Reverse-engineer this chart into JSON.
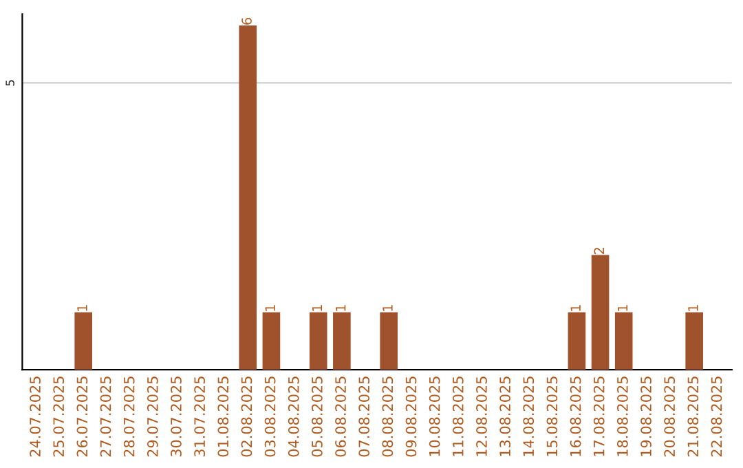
{
  "chart_data": {
    "type": "bar",
    "categories": [
      "24.07.2025",
      "25.07.2025",
      "26.07.2025",
      "27.07.2025",
      "28.07.2025",
      "29.07.2025",
      "30.07.2025",
      "31.07.2025",
      "01.08.2025",
      "02.08.2025",
      "03.08.2025",
      "04.08.2025",
      "05.08.2025",
      "06.08.2025",
      "07.08.2025",
      "08.08.2025",
      "09.08.2025",
      "10.08.2025",
      "11.08.2025",
      "12.08.2025",
      "13.08.2025",
      "14.08.2025",
      "15.08.2025",
      "16.08.2025",
      "17.08.2025",
      "18.08.2025",
      "19.08.2025",
      "20.08.2025",
      "21.08.2025",
      "22.08.2025"
    ],
    "values": [
      0,
      0,
      1,
      0,
      0,
      0,
      0,
      0,
      0,
      6,
      1,
      0,
      1,
      1,
      0,
      1,
      0,
      0,
      0,
      0,
      0,
      0,
      0,
      1,
      2,
      1,
      0,
      0,
      1,
      0
    ],
    "value_labels": [
      null,
      null,
      "1",
      null,
      null,
      null,
      null,
      null,
      null,
      "6",
      "1",
      null,
      "1",
      "1",
      null,
      "1",
      null,
      null,
      null,
      null,
      null,
      null,
      null,
      "1",
      "2",
      "1",
      null,
      null,
      "1",
      null
    ],
    "color": "#a0522d",
    "ylim": [
      0,
      6.2
    ],
    "yticks": [
      5
    ],
    "grid": "y",
    "legend": false
  }
}
